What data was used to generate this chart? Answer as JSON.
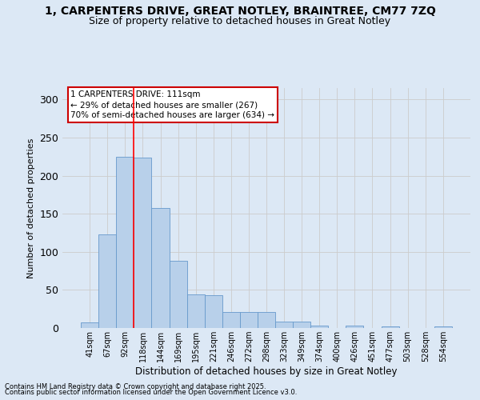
{
  "title1": "1, CARPENTERS DRIVE, GREAT NOTLEY, BRAINTREE, CM77 7ZQ",
  "title2": "Size of property relative to detached houses in Great Notley",
  "xlabel": "Distribution of detached houses by size in Great Notley",
  "ylabel": "Number of detached properties",
  "categories": [
    "41sqm",
    "67sqm",
    "92sqm",
    "118sqm",
    "144sqm",
    "169sqm",
    "195sqm",
    "221sqm",
    "246sqm",
    "272sqm",
    "298sqm",
    "323sqm",
    "349sqm",
    "374sqm",
    "400sqm",
    "426sqm",
    "451sqm",
    "477sqm",
    "503sqm",
    "528sqm",
    "554sqm"
  ],
  "values": [
    7,
    123,
    225,
    224,
    157,
    88,
    44,
    43,
    21,
    21,
    21,
    8,
    8,
    3,
    0,
    3,
    0,
    2,
    0,
    0,
    2
  ],
  "bar_color": "#b8d0ea",
  "bar_edge_color": "#6699cc",
  "bar_edge_width": 0.6,
  "grid_color": "#cccccc",
  "background_color": "#dce8f5",
  "red_line_x": 2.5,
  "annotation_text": "1 CARPENTERS DRIVE: 111sqm\n← 29% of detached houses are smaller (267)\n70% of semi-detached houses are larger (634) →",
  "annotation_box_color": "#ffffff",
  "annotation_box_edge_color": "#cc0000",
  "ylim": [
    0,
    315
  ],
  "yticks": [
    0,
    50,
    100,
    150,
    200,
    250,
    300
  ],
  "footer1": "Contains HM Land Registry data © Crown copyright and database right 2025.",
  "footer2": "Contains public sector information licensed under the Open Government Licence v3.0.",
  "title_fontsize": 10,
  "subtitle_fontsize": 9
}
